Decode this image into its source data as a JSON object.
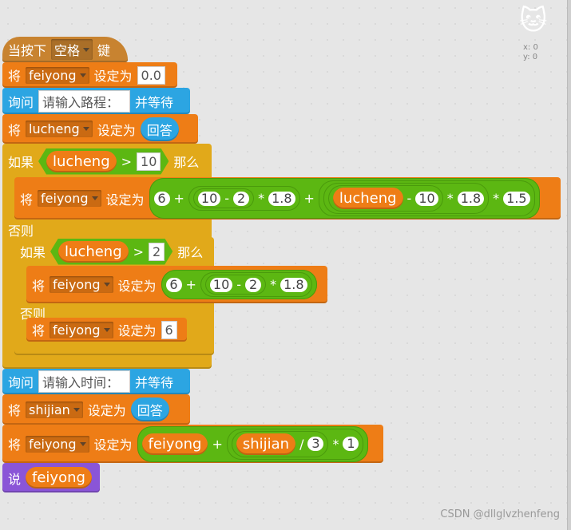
{
  "hat": {
    "pre": "当按下",
    "key": "空格",
    "post": "键"
  },
  "set1": {
    "label": "将",
    "var": "feiyong",
    "to": "设定为",
    "value": "0.0"
  },
  "ask1": {
    "label": "询问",
    "prompt": "请输入路程：",
    "wait": "并等待"
  },
  "set2": {
    "label": "将",
    "var": "lucheng",
    "to": "设定为",
    "value": "回答"
  },
  "if1": {
    "if": "如果",
    "var": "lucheng",
    "op": ">",
    "value": "10",
    "then": "那么",
    "else": "否则",
    "set": {
      "label": "将",
      "var": "feiyong",
      "to": "设定为",
      "a": "6",
      "p1": "+",
      "b": "10",
      "m1": "-",
      "c": "2",
      "t1": "*",
      "d": "1.8",
      "p2": "+",
      "v": "lucheng",
      "m2": "-",
      "e": "10",
      "t2": "*",
      "f": "1.8",
      "t3": "*",
      "g": "1.5"
    }
  },
  "if2": {
    "if": "如果",
    "var": "lucheng",
    "op": ">",
    "value": "2",
    "then": "那么",
    "else": "否则",
    "set": {
      "label": "将",
      "var": "feiyong",
      "to": "设定为",
      "a": "6",
      "p1": "+",
      "b": "10",
      "m1": "-",
      "c": "2",
      "t1": "*",
      "d": "1.8"
    },
    "set_else": {
      "label": "将",
      "var": "feiyong",
      "to": "设定为",
      "value": "6"
    }
  },
  "ask2": {
    "label": "询问",
    "prompt": "请输入时间：",
    "wait": "并等待"
  },
  "set3": {
    "label": "将",
    "var": "shijian",
    "to": "设定为",
    "value": "回答"
  },
  "set4": {
    "label": "将",
    "var": "feiyong",
    "to": "设定为",
    "v1": "feiyong",
    "p": "+",
    "v2": "shijian",
    "d": "/",
    "a": "3",
    "t": "*",
    "b": "1"
  },
  "say": {
    "label": "说",
    "var": "feiyong"
  },
  "sprite": {
    "x": "x: 0",
    "y": "y: 0"
  },
  "watermark": "CSDN @dllglvzhenfeng"
}
